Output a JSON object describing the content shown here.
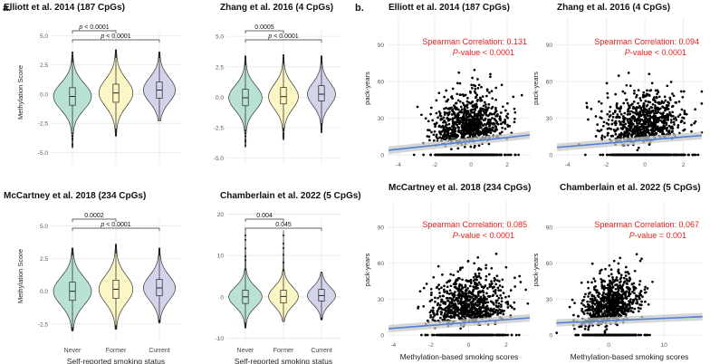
{
  "panel_labels": {
    "a": "a.",
    "b": "b."
  },
  "colors": {
    "never": "#b9e2d4",
    "former": "#fbf6c4",
    "current": "#d3d3ea",
    "regression": "#4f7fd6",
    "ci_band": "#c8c8c8",
    "stat_text": "#e1201f",
    "grid": "#e8e8e8"
  },
  "chart_data": [
    {
      "type": "violin",
      "id": "elliott-violin",
      "title": "Elliott et al. 2014 (187 CpGs)",
      "ylabel": "Methylation Score",
      "xlabel": "",
      "ylim": [
        -5.9,
        6.2
      ],
      "yticks": [
        -5.0,
        -2.5,
        0.0,
        2.5,
        5.0
      ],
      "ytick_labels": [
        "-5.0",
        "-2.5",
        "0.0",
        "2.5",
        "5.0"
      ],
      "categories": [
        "Never",
        "Former",
        "Current"
      ],
      "show_xticks": false,
      "groups": [
        {
          "name": "Never",
          "median": -0.2,
          "q1": -0.95,
          "q3": 0.55,
          "min": -4.6,
          "max": 3.6,
          "width": 0.95
        },
        {
          "name": "Former",
          "median": 0.1,
          "q1": -0.7,
          "q3": 0.85,
          "min": -3.6,
          "max": 3.8,
          "width": 0.85
        },
        {
          "name": "Current",
          "median": 0.35,
          "q1": -0.35,
          "q3": 1.05,
          "min": -2.3,
          "max": 3.6,
          "width": 0.8
        }
      ],
      "comparisons": [
        {
          "from": 0,
          "to": 1,
          "label": "p < 0.0001",
          "italic_p": true,
          "level": 0
        },
        {
          "from": 0,
          "to": 2,
          "label": "p < 0.0001",
          "italic_p": true,
          "level": 1
        }
      ]
    },
    {
      "type": "violin",
      "id": "zhang-violin",
      "title": "Zhang et al. 2016 (4 CpGs)",
      "ylabel": "",
      "xlabel": "",
      "ylim": [
        -5.4,
        6.2
      ],
      "yticks": [
        -5.0,
        -2.5,
        0.0,
        2.5,
        5.0
      ],
      "ytick_labels": [
        "-5.0",
        "-2.5",
        "0.0",
        "2.5",
        "5.0"
      ],
      "categories": [
        "Never",
        "Former",
        "Current"
      ],
      "show_xticks": false,
      "groups": [
        {
          "name": "Never",
          "median": -0.05,
          "q1": -0.7,
          "q3": 0.65,
          "min": -4.1,
          "max": 3.4,
          "width": 0.95
        },
        {
          "name": "Former",
          "median": 0.05,
          "q1": -0.55,
          "q3": 0.8,
          "min": -3.5,
          "max": 3.5,
          "width": 0.85
        },
        {
          "name": "Current",
          "median": 0.25,
          "q1": -0.3,
          "q3": 0.95,
          "min": -2.9,
          "max": 3.4,
          "width": 0.8
        }
      ],
      "comparisons": [
        {
          "from": 0,
          "to": 1,
          "label": "0.0005",
          "italic_p": false,
          "level": 0
        },
        {
          "from": 0,
          "to": 2,
          "label": "p < 0.0001",
          "italic_p": true,
          "level": 1
        }
      ]
    },
    {
      "type": "violin",
      "id": "mccartney-violin",
      "title": "McCartney et al. 2018 (234 CpGs)",
      "ylabel": "Methylation Score",
      "xlabel": "Self-reported smoking status",
      "ylim": [
        -3.9,
        6.2
      ],
      "yticks": [
        -2.5,
        0.0,
        2.5,
        5.0
      ],
      "ytick_labels": [
        "-2.5",
        "0.0",
        "2.5",
        "5.0"
      ],
      "categories": [
        "Never",
        "Former",
        "Current"
      ],
      "show_xticks": true,
      "groups": [
        {
          "name": "Never",
          "median": 0.0,
          "q1": -0.7,
          "q3": 0.7,
          "min": -3.0,
          "max": 3.3,
          "width": 0.95
        },
        {
          "name": "Former",
          "median": 0.15,
          "q1": -0.55,
          "q3": 0.85,
          "min": -2.9,
          "max": 3.6,
          "width": 0.85
        },
        {
          "name": "Current",
          "median": 0.25,
          "q1": -0.35,
          "q3": 0.9,
          "min": -2.4,
          "max": 3.3,
          "width": 0.8
        }
      ],
      "comparisons": [
        {
          "from": 0,
          "to": 1,
          "label": "0.0002",
          "italic_p": false,
          "level": 0
        },
        {
          "from": 0,
          "to": 2,
          "label": "p < 0.0001",
          "italic_p": true,
          "level": 1
        }
      ]
    },
    {
      "type": "violin",
      "id": "chamberlain-violin",
      "title": "Chamberlain et al. 2022 (5 CpGs)",
      "ylabel": "",
      "xlabel": "Self-reported smoking status",
      "ylim": [
        -11,
        21
      ],
      "yticks": [
        -10,
        0,
        10,
        20
      ],
      "ytick_labels": [
        "-10",
        "0",
        "10",
        "20"
      ],
      "categories": [
        "Never",
        "Former",
        "Current"
      ],
      "show_xticks": true,
      "groups": [
        {
          "name": "Never",
          "median": 0.0,
          "q1": -1.6,
          "q3": 1.6,
          "min": -7.5,
          "max": 16.5,
          "width": 0.95
        },
        {
          "name": "Former",
          "median": 0.1,
          "q1": -1.5,
          "q3": 1.6,
          "min": -6.0,
          "max": 16.0,
          "width": 0.85
        },
        {
          "name": "Current",
          "median": 0.3,
          "q1": -1.0,
          "q3": 1.8,
          "min": -5.5,
          "max": 6.0,
          "width": 0.8
        }
      ],
      "comparisons": [
        {
          "from": 0,
          "to": 1,
          "label": "0.004",
          "italic_p": false,
          "level": 0
        },
        {
          "from": 0,
          "to": 2,
          "label": "0.045",
          "italic_p": false,
          "level": 1
        }
      ]
    },
    {
      "type": "scatter",
      "id": "elliott-scatter",
      "title": "Elliott et al. 2014 (187 CpGs)",
      "ylabel": "pack-years",
      "xlabel": "",
      "xlim": [
        -4.6,
        3.3
      ],
      "ylim": [
        -3,
        112
      ],
      "xticks": [
        -4,
        -2,
        0,
        2
      ],
      "yticks": [
        0,
        30,
        60,
        90
      ],
      "show_xlabel": false,
      "seed": 11,
      "n_points": 1100,
      "x_mean": -0.1,
      "x_sd": 1.0,
      "regression": {
        "intercept": 11,
        "slope": 1.6
      },
      "annotation": {
        "correlation": "Spearman Correlation: 0.131",
        "p_label": "P",
        "p_text": "-value < 0.0001"
      }
    },
    {
      "type": "scatter",
      "id": "zhang-scatter",
      "title": "Zhang et al. 2016 (4 CpGs)",
      "ylabel": "pack-years",
      "xlabel": "",
      "xlim": [
        -4.6,
        3.0
      ],
      "ylim": [
        -3,
        112
      ],
      "xticks": [
        -4,
        -2,
        0,
        2
      ],
      "yticks": [
        0,
        30,
        60,
        90
      ],
      "show_xlabel": false,
      "seed": 23,
      "n_points": 1100,
      "x_mean": 0.0,
      "x_sd": 1.0,
      "regression": {
        "intercept": 12,
        "slope": 1.3
      },
      "annotation": {
        "correlation": "Spearman Correlation: 0.094",
        "p_label": "P",
        "p_text": "-value < 0.0001"
      }
    },
    {
      "type": "scatter",
      "id": "mccartney-scatter",
      "title": "McCartney et al. 2018 (234 CpGs)",
      "ylabel": "pack-years",
      "xlabel": "Methylation-based smoking scores",
      "xlim": [
        -4.3,
        3.3
      ],
      "ylim": [
        -3,
        112
      ],
      "xticks": [
        -4,
        -2,
        0,
        2
      ],
      "yticks": [
        0,
        30,
        60,
        90
      ],
      "show_xlabel": true,
      "seed": 37,
      "n_points": 1100,
      "x_mean": 0.0,
      "x_sd": 1.0,
      "regression": {
        "intercept": 10.5,
        "slope": 1.2
      },
      "annotation": {
        "correlation": "Spearman Correlation: 0.085",
        "p_label": "P",
        "p_text": "-value < 0.0001"
      }
    },
    {
      "type": "scatter",
      "id": "chamberlain-scatter",
      "title": "Chamberlain et al. 2022 (5 CpGs)",
      "ylabel": "pack-years",
      "xlabel": "Methylation-based smoking scores",
      "xlim": [
        -9.5,
        17
      ],
      "ylim": [
        -3,
        112
      ],
      "xticks": [
        0,
        10
      ],
      "yticks": [
        0,
        30,
        60,
        90
      ],
      "show_xlabel": true,
      "seed": 53,
      "n_points": 1100,
      "x_mean": 0.3,
      "x_sd": 2.6,
      "regression": {
        "intercept": 12,
        "slope": 0.2
      },
      "annotation": {
        "correlation": "Spearman Correlation: 0.067",
        "p_label": "P",
        "p_text": "-value = 0.001"
      }
    }
  ]
}
